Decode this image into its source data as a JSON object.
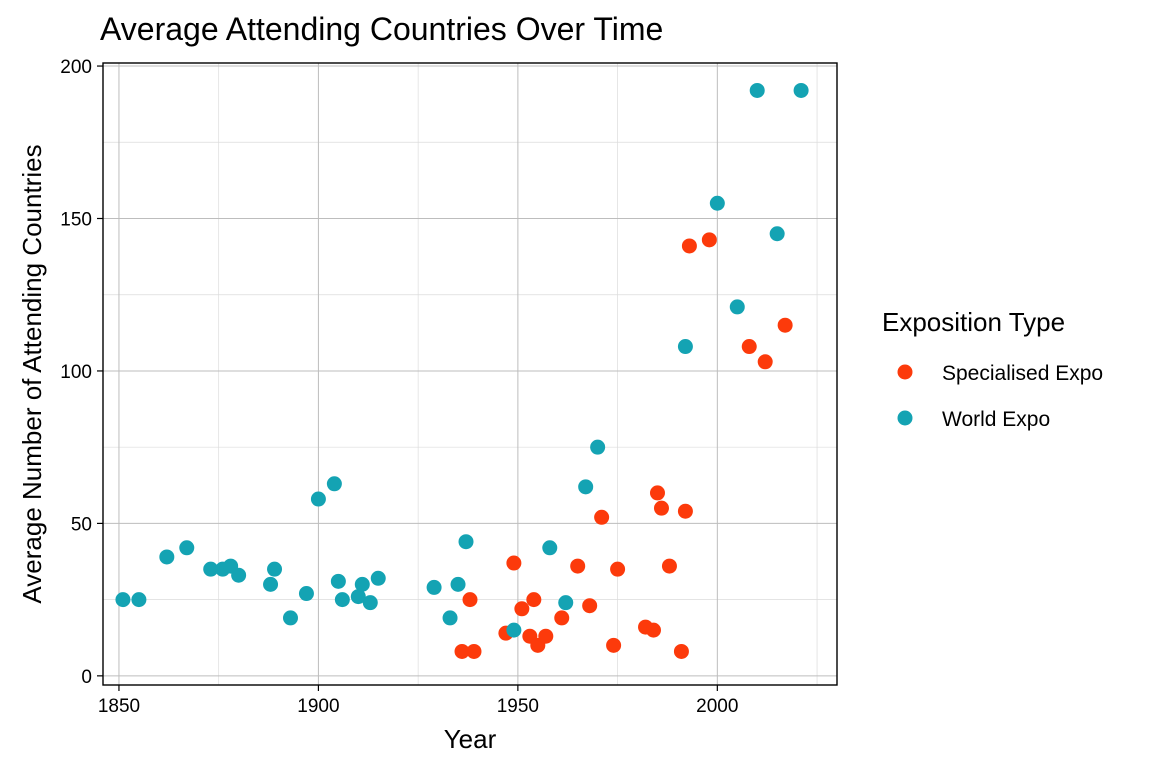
{
  "chart_data": {
    "type": "scatter",
    "title": "Average Attending Countries Over Time",
    "xlabel": "Year",
    "ylabel": "Average Number of Attending Countries",
    "xlim": [
      1846,
      2030
    ],
    "ylim": [
      -3,
      201
    ],
    "xticks": [
      1850,
      1900,
      1950,
      2000
    ],
    "yticks": [
      0,
      50,
      100,
      150,
      200
    ],
    "grid": true,
    "legend": {
      "title": "Exposition Type",
      "position": "right"
    },
    "series": [
      {
        "name": "Specialised Expo",
        "color": "#FC3A0B",
        "points": [
          [
            1936,
            8
          ],
          [
            1938,
            25
          ],
          [
            1939,
            8
          ],
          [
            1947,
            14
          ],
          [
            1949,
            37
          ],
          [
            1951,
            22
          ],
          [
            1953,
            13
          ],
          [
            1954,
            25
          ],
          [
            1955,
            10
          ],
          [
            1957,
            13
          ],
          [
            1961,
            19
          ],
          [
            1965,
            36
          ],
          [
            1968,
            23
          ],
          [
            1971,
            52
          ],
          [
            1974,
            10
          ],
          [
            1975,
            35
          ],
          [
            1982,
            16
          ],
          [
            1984,
            15
          ],
          [
            1985,
            60
          ],
          [
            1986,
            55
          ],
          [
            1988,
            36
          ],
          [
            1991,
            8
          ],
          [
            1992,
            54
          ],
          [
            1993,
            141
          ],
          [
            1998,
            143
          ],
          [
            2008,
            108
          ],
          [
            2012,
            103
          ],
          [
            2017,
            115
          ]
        ]
      },
      {
        "name": "World Expo",
        "color": "#14A3B3",
        "points": [
          [
            1851,
            25
          ],
          [
            1855,
            25
          ],
          [
            1862,
            39
          ],
          [
            1867,
            42
          ],
          [
            1873,
            35
          ],
          [
            1876,
            35
          ],
          [
            1878,
            36
          ],
          [
            1880,
            33
          ],
          [
            1888,
            30
          ],
          [
            1889,
            35
          ],
          [
            1893,
            19
          ],
          [
            1897,
            27
          ],
          [
            1900,
            58
          ],
          [
            1904,
            63
          ],
          [
            1905,
            31
          ],
          [
            1906,
            25
          ],
          [
            1910,
            26
          ],
          [
            1911,
            30
          ],
          [
            1913,
            24
          ],
          [
            1915,
            32
          ],
          [
            1929,
            29
          ],
          [
            1933,
            19
          ],
          [
            1935,
            30
          ],
          [
            1937,
            44
          ],
          [
            1949,
            15
          ],
          [
            1958,
            42
          ],
          [
            1962,
            24
          ],
          [
            1967,
            62
          ],
          [
            1970,
            75
          ],
          [
            1992,
            108
          ],
          [
            2000,
            155
          ],
          [
            2005,
            121
          ],
          [
            2010,
            192
          ],
          [
            2015,
            145
          ],
          [
            2021,
            192
          ]
        ]
      }
    ]
  }
}
